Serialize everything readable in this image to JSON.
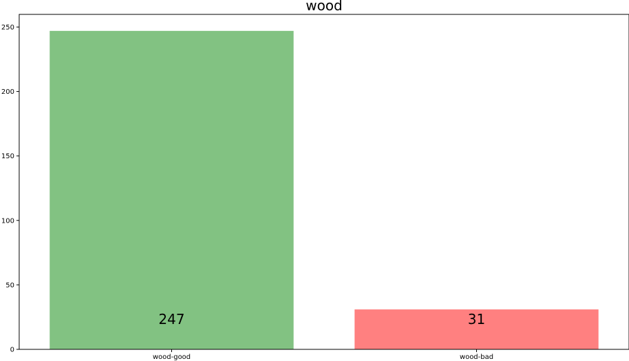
{
  "chart_data": {
    "type": "bar",
    "title": "wood",
    "xlabel": "",
    "ylabel": "",
    "categories": [
      "wood-good",
      "wood-bad"
    ],
    "values": [
      247,
      31
    ],
    "data_labels": [
      "247",
      "31"
    ],
    "colors": [
      "#82c282",
      "#ff8080"
    ],
    "ylim": [
      0,
      259.8
    ],
    "yticks": [
      0,
      50,
      100,
      150,
      200,
      250
    ],
    "ytick_labels": [
      "0",
      "50",
      "100",
      "150",
      "200",
      "250"
    ],
    "grid": false,
    "legend": "none"
  }
}
